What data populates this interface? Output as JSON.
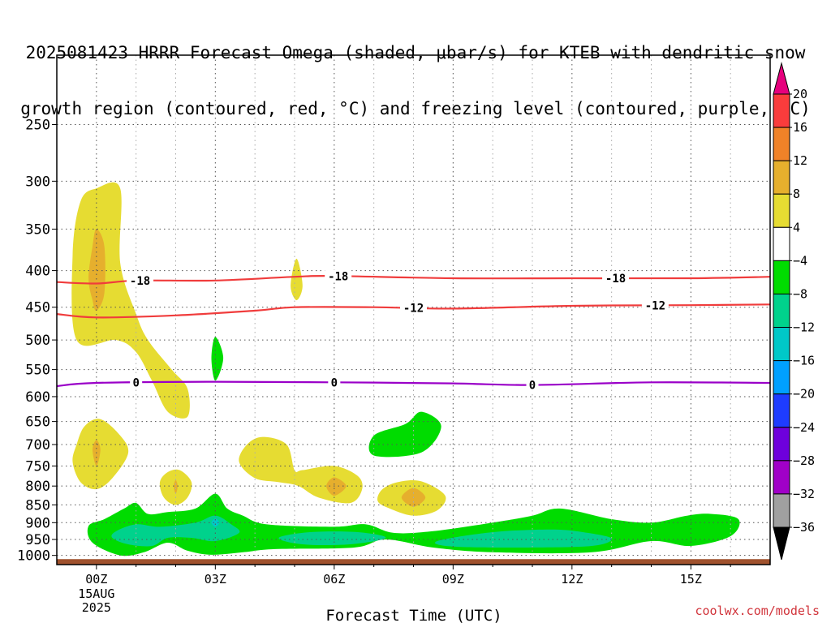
{
  "title": {
    "line1": "2025081423 HRRR Forecast Omega (shaded, μbar/s) for KTEB with dendritic snow",
    "line2": "growth region (contoured, red, °C) and freezing level (contoured, purple, °C)"
  },
  "credit": "coolwx.com/models",
  "chart_data": {
    "type": "heatmap",
    "xlabel": "Forecast Time (UTC)",
    "x_ticks": [
      {
        "hour": 0,
        "label": "00Z",
        "sub1": "15AUG",
        "sub2": "2025"
      },
      {
        "hour": 3,
        "label": "03Z"
      },
      {
        "hour": 6,
        "label": "06Z"
      },
      {
        "hour": 9,
        "label": "09Z"
      },
      {
        "hour": 12,
        "label": "12Z"
      },
      {
        "hour": 15,
        "label": "15Z"
      }
    ],
    "xlim": [
      -1,
      17
    ],
    "y_scale": "log-pressure",
    "ylim": [
      1030,
      200
    ],
    "y_ticks": [
      250,
      300,
      350,
      400,
      450,
      500,
      550,
      600,
      650,
      700,
      750,
      800,
      850,
      900,
      950,
      1000
    ],
    "grid": true,
    "colorbar": {
      "levels": [
        -36,
        -32,
        -28,
        -24,
        -20,
        -16,
        -12,
        -8,
        -4,
        4,
        8,
        12,
        16,
        20
      ],
      "labels": [
        "20",
        "16",
        "12",
        "8",
        "4",
        "−4",
        "−8",
        "−12",
        "−16",
        "−20",
        "−24",
        "−28",
        "−32",
        "−36"
      ],
      "colors": [
        "#000000",
        "#a0a0a0",
        "#a000c8",
        "#6e00dc",
        "#1e3cff",
        "#00a0ff",
        "#00c8c8",
        "#00d28c",
        "#00dc00",
        "#ffffff",
        "#e6dc32",
        "#e6af2d",
        "#f08228",
        "#fa3c3c",
        "#e6007d"
      ]
    },
    "omega_regions": [
      {
        "level": "4",
        "color": "#e6dc32",
        "polygon": [
          [
            -0.5,
            500
          ],
          [
            -0.6,
            380
          ],
          [
            -0.4,
            320
          ],
          [
            0.0,
            307
          ],
          [
            0.6,
            307
          ],
          [
            0.6,
            390
          ],
          [
            1.0,
            460
          ],
          [
            1.3,
            500
          ],
          [
            1.9,
            550
          ],
          [
            2.3,
            585
          ],
          [
            2.3,
            640
          ],
          [
            1.8,
            630
          ],
          [
            1.4,
            570
          ],
          [
            1.0,
            520
          ],
          [
            0.5,
            500
          ]
        ]
      },
      {
        "level": "8",
        "color": "#e6af2d",
        "polygon": [
          [
            -0.2,
            410
          ],
          [
            -0.1,
            370
          ],
          [
            0.0,
            350
          ],
          [
            0.2,
            370
          ],
          [
            0.2,
            430
          ],
          [
            0.0,
            455
          ],
          [
            -0.1,
            440
          ]
        ]
      },
      {
        "level": "4",
        "color": "#e6dc32",
        "polygon": [
          [
            -0.5,
            700
          ],
          [
            -0.3,
            660
          ],
          [
            0.1,
            645
          ],
          [
            0.6,
            680
          ],
          [
            0.8,
            720
          ],
          [
            0.4,
            780
          ],
          [
            0.0,
            808
          ],
          [
            -0.4,
            790
          ],
          [
            -0.6,
            740
          ]
        ]
      },
      {
        "level": "8",
        "color": "#e6af2d",
        "polygon": [
          [
            -0.1,
            712
          ],
          [
            0.0,
            690
          ],
          [
            0.1,
            712
          ],
          [
            0.0,
            750
          ]
        ]
      },
      {
        "level": "4",
        "color": "#e6dc32",
        "polygon": [
          [
            1.6,
            790
          ],
          [
            1.8,
            765
          ],
          [
            2.1,
            760
          ],
          [
            2.4,
            790
          ],
          [
            2.3,
            830
          ],
          [
            2.0,
            850
          ],
          [
            1.7,
            830
          ]
        ]
      },
      {
        "level": "8",
        "color": "#e6af2d",
        "polygon": [
          [
            1.95,
            800
          ],
          [
            2.0,
            785
          ],
          [
            2.05,
            800
          ],
          [
            2.0,
            820
          ]
        ]
      },
      {
        "level": "4",
        "color": "#e6dc32",
        "polygon": [
          [
            4.9,
            420
          ],
          [
            5.05,
            385
          ],
          [
            5.2,
            420
          ],
          [
            5.05,
            440
          ]
        ]
      },
      {
        "level": "-4",
        "color": "#00dc00",
        "polygon": [
          [
            2.9,
            530
          ],
          [
            3.0,
            495
          ],
          [
            3.2,
            530
          ],
          [
            3.0,
            570
          ]
        ]
      },
      {
        "level": "4",
        "color": "#e6dc32",
        "polygon": [
          [
            3.6,
            740
          ],
          [
            3.8,
            700
          ],
          [
            4.2,
            683
          ],
          [
            4.8,
            700
          ],
          [
            5.0,
            760
          ],
          [
            5.2,
            760
          ],
          [
            6.0,
            750
          ],
          [
            6.6,
            775
          ],
          [
            6.7,
            810
          ],
          [
            6.4,
            845
          ],
          [
            5.6,
            830
          ],
          [
            5.1,
            800
          ],
          [
            4.6,
            790
          ],
          [
            4.0,
            780
          ]
        ]
      },
      {
        "level": "8",
        "color": "#e6af2d",
        "polygon": [
          [
            5.8,
            800
          ],
          [
            6.0,
            778
          ],
          [
            6.3,
            800
          ],
          [
            6.0,
            825
          ]
        ]
      },
      {
        "level": "4",
        "color": "#e6dc32",
        "polygon": [
          [
            7.2,
            810
          ],
          [
            7.6,
            790
          ],
          [
            8.2,
            788
          ],
          [
            8.8,
            825
          ],
          [
            8.6,
            865
          ],
          [
            8.0,
            880
          ],
          [
            7.4,
            860
          ],
          [
            7.1,
            840
          ]
        ]
      },
      {
        "level": "8",
        "color": "#e6af2d",
        "polygon": [
          [
            7.7,
            830
          ],
          [
            8.0,
            805
          ],
          [
            8.3,
            830
          ],
          [
            8.0,
            855
          ]
        ]
      },
      {
        "level": "-4",
        "color": "#00dc00",
        "polygon": [
          [
            7.0,
            680
          ],
          [
            7.8,
            655
          ],
          [
            8.2,
            630
          ],
          [
            8.7,
            660
          ],
          [
            8.2,
            718
          ],
          [
            7.0,
            725
          ]
        ]
      },
      {
        "level": "-4",
        "color": "#00dc00",
        "polygon": [
          [
            -0.2,
            910
          ],
          [
            0.2,
            890
          ],
          [
            0.7,
            860
          ],
          [
            1.0,
            845
          ],
          [
            1.3,
            875
          ],
          [
            1.8,
            870
          ],
          [
            2.5,
            860
          ],
          [
            3.0,
            820
          ],
          [
            3.3,
            860
          ],
          [
            3.7,
            880
          ],
          [
            4.3,
            905
          ],
          [
            6.0,
            912
          ],
          [
            6.8,
            905
          ],
          [
            7.5,
            930
          ],
          [
            8.5,
            925
          ],
          [
            10.0,
            900
          ],
          [
            11.0,
            880
          ],
          [
            11.7,
            860
          ],
          [
            13.0,
            890
          ],
          [
            14.0,
            900
          ],
          [
            14.9,
            880
          ],
          [
            15.5,
            875
          ],
          [
            16.2,
            890
          ],
          [
            16.0,
            940
          ],
          [
            15.0,
            970
          ],
          [
            14.0,
            955
          ],
          [
            12.5,
            990
          ],
          [
            10.0,
            990
          ],
          [
            8.5,
            975
          ],
          [
            7.3,
            950
          ],
          [
            6.5,
            975
          ],
          [
            4.5,
            980
          ],
          [
            3.7,
            990
          ],
          [
            2.9,
            998
          ],
          [
            2.3,
            985
          ],
          [
            1.8,
            960
          ],
          [
            1.2,
            990
          ],
          [
            0.6,
            1000
          ],
          [
            -0.1,
            960
          ]
        ]
      },
      {
        "level": "-8",
        "color": "#00d28c",
        "polygon": [
          [
            0.5,
            925
          ],
          [
            1.0,
            905
          ],
          [
            1.6,
            912
          ],
          [
            2.5,
            900
          ],
          [
            3.0,
            880
          ],
          [
            3.4,
            905
          ],
          [
            3.6,
            930
          ],
          [
            3.0,
            955
          ],
          [
            2.4,
            945
          ],
          [
            1.8,
            945
          ],
          [
            1.4,
            970
          ],
          [
            0.8,
            965
          ],
          [
            0.4,
            945
          ]
        ]
      },
      {
        "level": "-12",
        "color": "#00c8c8",
        "polygon": [
          [
            2.9,
            900
          ],
          [
            3.0,
            888
          ],
          [
            3.1,
            900
          ],
          [
            3.0,
            912
          ]
        ]
      },
      {
        "level": "-8",
        "color": "#00d28c",
        "polygon": [
          [
            4.6,
            945
          ],
          [
            5.4,
            928
          ],
          [
            6.6,
            928
          ],
          [
            7.3,
            945
          ],
          [
            6.4,
            965
          ],
          [
            5.2,
            965
          ]
        ]
      },
      {
        "level": "-8",
        "color": "#00d28c",
        "polygon": [
          [
            8.6,
            955
          ],
          [
            10.0,
            928
          ],
          [
            11.5,
            920
          ],
          [
            12.4,
            930
          ],
          [
            13.0,
            948
          ],
          [
            12.5,
            970
          ],
          [
            10.8,
            975
          ],
          [
            9.0,
            972
          ]
        ]
      }
    ],
    "isotherms": [
      {
        "label": "-18",
        "color": "#f03c3c",
        "pressure": [
          [
            -1,
            415
          ],
          [
            0,
            417
          ],
          [
            1,
            413
          ],
          [
            3,
            413
          ],
          [
            5,
            408
          ],
          [
            6,
            407
          ],
          [
            9,
            410
          ],
          [
            12,
            410
          ],
          [
            15,
            410
          ],
          [
            17,
            408
          ]
        ],
        "label_hours": [
          1.1,
          6.1,
          13.1
        ]
      },
      {
        "label": "-12",
        "color": "#f03c3c",
        "pressure": [
          [
            -1,
            460
          ],
          [
            0,
            465
          ],
          [
            2,
            462
          ],
          [
            4,
            455
          ],
          [
            5,
            450
          ],
          [
            7,
            450
          ],
          [
            9,
            452
          ],
          [
            12,
            448
          ],
          [
            15,
            447
          ],
          [
            17,
            446
          ]
        ],
        "label_hours": [
          8.0,
          14.1
        ]
      },
      {
        "label": "0",
        "color": "#9a00c8",
        "pressure": [
          [
            -1,
            580
          ],
          [
            0,
            574
          ],
          [
            3,
            572
          ],
          [
            6,
            573
          ],
          [
            9,
            575
          ],
          [
            11,
            578
          ],
          [
            14,
            573
          ],
          [
            17,
            574
          ]
        ],
        "label_hours": [
          1.0,
          6.0,
          11.0
        ]
      }
    ],
    "terrain_top_hpa": 1012
  }
}
